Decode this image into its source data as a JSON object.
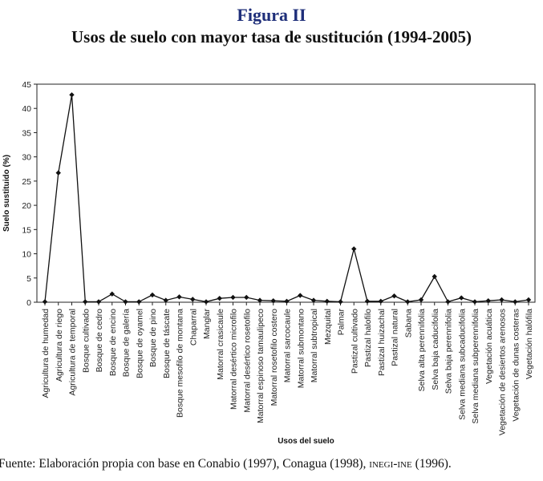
{
  "figure": {
    "label": "Figura II",
    "title": "Usos de suelo con mayor tasa de sustitución (1994-2005)"
  },
  "source": {
    "prefix": "Fuente: Elaboración propia con base en Conabio (1997), Conagua (1998), ",
    "smallcaps": "inegi-ine",
    "suffix": " (1996)."
  },
  "chart_data": {
    "type": "line",
    "title": "Usos de suelo con mayor tasa de sustitución (1994-2005)",
    "xlabel": "Usos del suelo",
    "ylabel": "Suelo sustituido (%)",
    "ylim": [
      0,
      45
    ],
    "yticks": [
      0,
      5,
      10,
      15,
      20,
      25,
      30,
      35,
      40,
      45
    ],
    "grid": false,
    "marker": "diamond",
    "categories": [
      "Agricultura de humedad",
      "Agricultura de riego",
      "Agricultura de temporal",
      "Bosque cultivado",
      "Bosque de cedro",
      "Bosque de encino",
      "Bosque de galería",
      "Bosque de oyamel",
      "Bosque de pino",
      "Bosque de táscate",
      "Bosque mesofilo de montana",
      "Chaparral",
      "Manglar",
      "Matorral crasicaule",
      "Matorral desértico microfilo",
      "Matorral desértico rosetofilo",
      "Matorral espinoso tamaulipeco",
      "Matorral rosetofilo costero",
      "Matorral sarcocaule",
      "Matorral submontano",
      "Matorral subtropical",
      "Mezquital",
      "Palmar",
      "Pastizal cultivado",
      "Pastizal halofilo",
      "Pastizal huizachal",
      "Pastizal natural",
      "Sabana",
      "Selva alta perennifolia",
      "Selva baja caducifolia",
      "Selva baja perennifolia",
      "Selva mediana subcaducifolia",
      "Selva mediana subperennifolia",
      "Vegetación acuática",
      "Vegetación de desiertos arenosos",
      "Vegetación de dunas costeras",
      "Vegetación halófila"
    ],
    "series": [
      {
        "name": "Suelo sustituido (%)",
        "values": [
          0.1,
          26.7,
          42.8,
          0.1,
          0.1,
          1.7,
          0.1,
          0.1,
          1.5,
          0.4,
          1.1,
          0.6,
          0.1,
          0.8,
          1.0,
          1.0,
          0.4,
          0.3,
          0.2,
          1.4,
          0.4,
          0.2,
          0.1,
          11.0,
          0.2,
          0.2,
          1.3,
          0.1,
          0.5,
          5.3,
          0.1,
          0.9,
          0.1,
          0.3,
          0.5,
          0.1,
          0.5
        ]
      }
    ]
  }
}
